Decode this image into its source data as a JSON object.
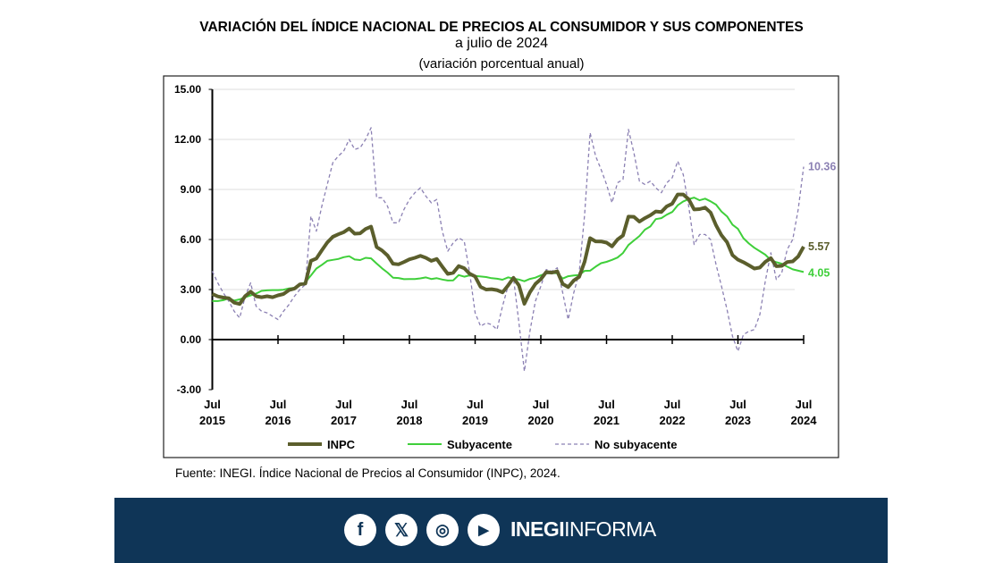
{
  "title": "VARIACIÓN DEL ÍNDICE NACIONAL DE PRECIOS AL CONSUMIDOR Y SUS COMPONENTES",
  "subtitle": "a julio de 2024",
  "subtitle2": "(variación porcentual anual)",
  "source": "Fuente: INEGI. Índice Nacional de Precios al Consumidor (INPC), 2024.",
  "footer": {
    "brand_bold": "INEGI",
    "brand_light": "INFORMA",
    "icons": [
      "facebook-icon",
      "x-icon",
      "instagram-icon",
      "youtube-icon"
    ]
  },
  "chart_data": {
    "type": "line",
    "x_start": "2015-07",
    "x_end": "2024-07",
    "frequency": "monthly",
    "x_ticks": [
      {
        "m": "Jul",
        "y": "2015"
      },
      {
        "m": "Jul",
        "y": "2016"
      },
      {
        "m": "Jul",
        "y": "2017"
      },
      {
        "m": "Jul",
        "y": "2018"
      },
      {
        "m": "Jul",
        "y": "2019"
      },
      {
        "m": "Jul",
        "y": "2020"
      },
      {
        "m": "Jul",
        "y": "2021"
      },
      {
        "m": "Jul",
        "y": "2022"
      },
      {
        "m": "Jul",
        "y": "2023"
      },
      {
        "m": "Jul",
        "y": "2024"
      }
    ],
    "y_ticks": [
      "15.00",
      "12.00",
      "9.00",
      "6.00",
      "3.00",
      "0.00",
      "-3.00"
    ],
    "ylim": [
      -3,
      15
    ],
    "grid": "horizontal",
    "legend": "bottom",
    "series": [
      {
        "name": "INPC",
        "color": "#5b5e2c",
        "style": "solid-thick",
        "end_label": "5.57",
        "values": [
          2.74,
          2.59,
          2.52,
          2.48,
          2.21,
          2.13,
          2.61,
          2.87,
          2.6,
          2.54,
          2.6,
          2.54,
          2.65,
          2.73,
          2.97,
          3.06,
          3.31,
          3.36,
          4.72,
          4.86,
          5.35,
          5.82,
          6.16,
          6.31,
          6.44,
          6.66,
          6.35,
          6.37,
          6.63,
          6.77,
          5.55,
          5.34,
          5.04,
          4.55,
          4.51,
          4.65,
          4.81,
          4.9,
          5.02,
          4.9,
          4.72,
          4.83,
          4.37,
          3.94,
          4.0,
          4.41,
          4.28,
          3.95,
          3.78,
          3.16,
          3.0,
          3.02,
          2.97,
          2.83,
          3.24,
          3.7,
          3.25,
          2.15,
          2.84,
          3.33,
          3.62,
          4.05,
          4.01,
          4.09,
          3.33,
          3.15,
          3.54,
          3.76,
          4.67,
          6.08,
          5.89,
          5.88,
          5.81,
          5.59,
          6.0,
          6.24,
          7.37,
          7.36,
          7.07,
          7.28,
          7.45,
          7.68,
          7.65,
          7.99,
          8.15,
          8.7,
          8.7,
          8.41,
          7.8,
          7.82,
          7.91,
          7.62,
          6.85,
          6.25,
          5.84,
          5.06,
          4.79,
          4.64,
          4.45,
          4.26,
          4.32,
          4.66,
          4.88,
          4.4,
          4.42,
          4.65,
          4.69,
          4.98,
          5.57
        ]
      },
      {
        "name": "Subyacente",
        "color": "#3fcf3a",
        "style": "solid",
        "end_label": "4.05",
        "values": [
          2.31,
          2.31,
          2.36,
          2.47,
          2.34,
          2.41,
          2.54,
          2.65,
          2.76,
          2.92,
          2.95,
          2.97,
          2.97,
          2.99,
          3.07,
          3.1,
          3.29,
          3.44,
          3.84,
          4.26,
          4.48,
          4.72,
          4.78,
          4.83,
          4.94,
          5.0,
          4.8,
          4.77,
          4.9,
          4.87,
          4.56,
          4.27,
          4.02,
          3.71,
          3.69,
          3.62,
          3.63,
          3.63,
          3.67,
          3.73,
          3.63,
          3.68,
          3.6,
          3.54,
          3.55,
          3.87,
          3.77,
          3.85,
          3.82,
          3.78,
          3.75,
          3.68,
          3.65,
          3.59,
          3.73,
          3.66,
          3.6,
          3.5,
          3.64,
          3.71,
          3.85,
          3.97,
          3.99,
          3.98,
          3.66,
          3.8,
          3.84,
          3.87,
          4.12,
          4.13,
          4.37,
          4.58,
          4.66,
          4.78,
          4.92,
          5.19,
          5.67,
          5.94,
          6.21,
          6.59,
          6.78,
          7.22,
          7.28,
          7.49,
          7.65,
          8.05,
          8.28,
          8.42,
          8.51,
          8.35,
          8.45,
          8.29,
          8.09,
          7.67,
          7.39,
          6.89,
          6.64,
          6.08,
          5.76,
          5.5,
          5.3,
          5.09,
          4.76,
          4.64,
          4.55,
          4.37,
          4.21,
          4.13,
          4.05
        ]
      },
      {
        "name": "No subyacente",
        "color": "#8b80b3",
        "style": "dashed",
        "end_label": "10.36",
        "values": [
          4.1,
          3.4,
          2.8,
          2.3,
          1.7,
          1.3,
          2.6,
          3.4,
          2.0,
          1.7,
          1.6,
          1.4,
          1.2,
          1.7,
          2.1,
          2.6,
          3.0,
          3.3,
          7.4,
          6.5,
          8.0,
          9.3,
          10.6,
          11.0,
          11.3,
          12.0,
          11.4,
          11.5,
          12.0,
          12.7,
          8.5,
          8.5,
          8.0,
          7.0,
          7.0,
          7.8,
          8.4,
          8.8,
          9.1,
          8.6,
          8.2,
          8.4,
          6.5,
          5.3,
          5.8,
          6.1,
          5.9,
          4.0,
          1.6,
          0.8,
          1.0,
          0.9,
          0.6,
          2.0,
          3.2,
          3.7,
          1.0,
          -1.9,
          0.5,
          2.3,
          3.2,
          4.2,
          4.1,
          4.3,
          2.8,
          1.2,
          2.8,
          4.0,
          7.5,
          12.4,
          11.0,
          10.2,
          9.3,
          8.2,
          9.4,
          9.6,
          12.6,
          11.2,
          9.5,
          9.3,
          9.5,
          9.1,
          8.8,
          9.4,
          9.7,
          10.7,
          9.9,
          8.0,
          5.7,
          6.3,
          6.3,
          6.0,
          4.5,
          3.2,
          1.8,
          0.2,
          -0.7,
          0.3,
          0.5,
          0.6,
          1.5,
          3.5,
          5.2,
          3.6,
          4.0,
          5.4,
          6.0,
          7.8,
          10.36
        ]
      }
    ]
  }
}
